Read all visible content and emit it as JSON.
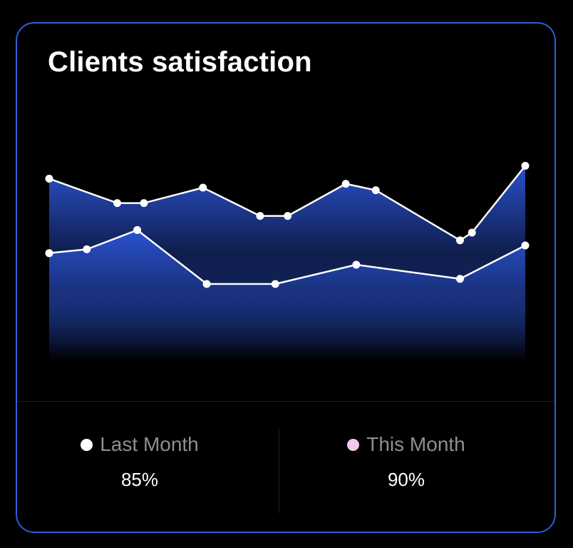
{
  "card": {
    "title": "Clients satisfaction"
  },
  "colors": {
    "border": "#2f5ed6",
    "fill_top": "#2b54d6",
    "fill_bottom": "#000000",
    "line": "#ffffff",
    "last_month_dot": "#ffffff",
    "this_month_dot": "#f0c8ec"
  },
  "legend": [
    {
      "label": "Last Month",
      "value": "85%",
      "dot_color": "#ffffff"
    },
    {
      "label": "This Month",
      "value": "90%",
      "dot_color": "#f0c8ec"
    }
  ],
  "chart_data": {
    "type": "area",
    "title": "Clients satisfaction",
    "xlabel": "",
    "ylabel": "",
    "grid": false,
    "xlim": [
      0,
      100
    ],
    "ylim": [
      0,
      100
    ],
    "legend_placement": "bottom",
    "series": [
      {
        "x": [
          0,
          14.3,
          19.9,
          32.3,
          44.3,
          50.1,
          62.3,
          68.6,
          86.3,
          88.8,
          100
        ],
        "values": [
          71,
          61.5,
          61.5,
          67.5,
          56.5,
          56.5,
          69,
          66.5,
          47,
          50,
          76
        ]
      },
      {
        "x": [
          0,
          7.9,
          18.5,
          33.1,
          47.5,
          64.5,
          86.3,
          100
        ],
        "values": [
          42,
          43.5,
          51,
          30,
          30,
          37.5,
          32,
          45
        ]
      }
    ]
  }
}
